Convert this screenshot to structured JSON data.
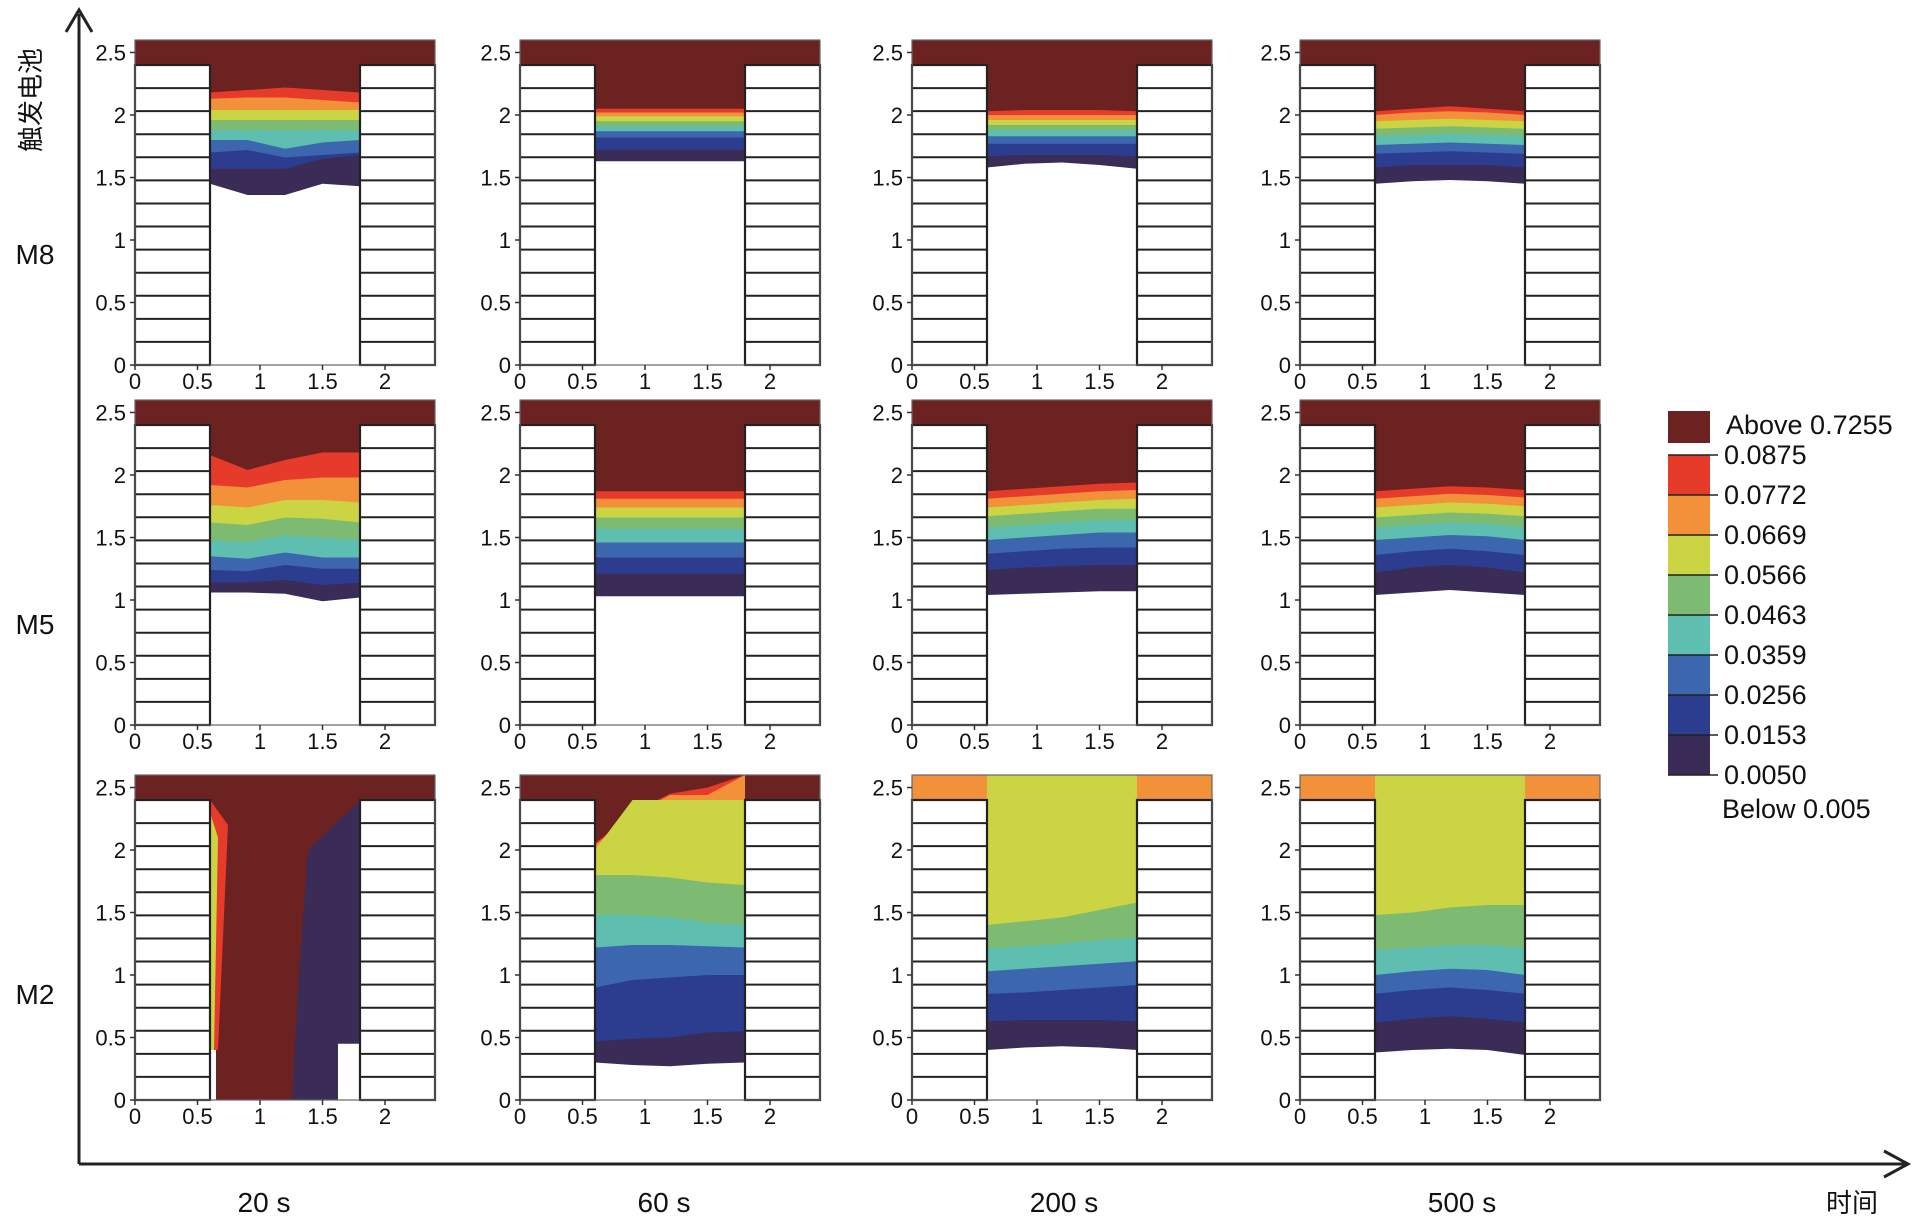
{
  "figure": {
    "y_axis_title": "触发电池",
    "x_axis_title": "时间"
  },
  "colors": {
    "above": "#6b2220",
    "bands": [
      "#3a2b57",
      "#2c3c8e",
      "#3c66ad",
      "#5ebfb1",
      "#7dba72",
      "#cbd544",
      "#f3903a",
      "#e63b2b"
    ],
    "brick_line": "#222222",
    "brick_fill": "#ffffff"
  },
  "legend": {
    "above_label": "Above 0.7255",
    "below_label": "Below 0.005",
    "levels": [
      "0.0875",
      "0.0772",
      "0.0669",
      "0.0566",
      "0.0463",
      "0.0359",
      "0.0256",
      "0.0153",
      "0.0050"
    ]
  },
  "chart_data": {
    "type": "heatmap",
    "rows": [
      "M8",
      "M5",
      "M2"
    ],
    "columns": [
      "20 s",
      "60 s",
      "200 s",
      "500 s"
    ],
    "x_ticks": [
      "0",
      "0.5",
      "1",
      "1.5",
      "2"
    ],
    "y_ticks": [
      "0",
      "0.5",
      "1",
      "1.5",
      "2",
      "2.5"
    ],
    "xlim": [
      0,
      2.4
    ],
    "ylim": [
      0,
      2.6
    ],
    "channel_x_range": [
      0.6,
      1.8
    ],
    "header_y_range": [
      2.4,
      2.6
    ],
    "panels": [
      {
        "row": "M8",
        "time": "20 s",
        "top_band": 7,
        "x": [
          0.6,
          0.9,
          1.2,
          1.5,
          1.8
        ],
        "contours": [
          [
            1.45,
            1.36,
            1.36,
            1.45,
            1.43
          ],
          [
            1.57,
            1.57,
            1.57,
            1.65,
            1.68
          ],
          [
            1.7,
            1.72,
            1.66,
            1.68,
            1.7
          ],
          [
            1.8,
            1.8,
            1.73,
            1.78,
            1.8
          ],
          [
            1.88,
            1.88,
            1.88,
            1.88,
            1.88
          ],
          [
            1.96,
            1.96,
            1.96,
            1.96,
            1.96
          ],
          [
            2.04,
            2.04,
            2.04,
            2.04,
            2.04
          ],
          [
            2.13,
            2.14,
            2.14,
            2.12,
            2.1
          ],
          [
            2.18,
            2.2,
            2.22,
            2.2,
            2.18
          ]
        ]
      },
      {
        "row": "M8",
        "time": "60 s",
        "top_band": 7,
        "x": [
          0.6,
          0.9,
          1.2,
          1.5,
          1.8
        ],
        "contours": [
          [
            1.63,
            1.63,
            1.63,
            1.63,
            1.63
          ],
          [
            1.72,
            1.72,
            1.72,
            1.72,
            1.72
          ],
          [
            1.82,
            1.82,
            1.82,
            1.82,
            1.82
          ],
          [
            1.87,
            1.87,
            1.87,
            1.87,
            1.87
          ],
          [
            1.91,
            1.91,
            1.91,
            1.91,
            1.91
          ],
          [
            1.95,
            1.95,
            1.95,
            1.95,
            1.95
          ],
          [
            1.99,
            1.99,
            1.99,
            1.99,
            1.99
          ],
          [
            2.02,
            2.02,
            2.02,
            2.02,
            2.02
          ],
          [
            2.05,
            2.05,
            2.05,
            2.05,
            2.05
          ]
        ]
      },
      {
        "row": "M8",
        "time": "200 s",
        "top_band": 7,
        "x": [
          0.6,
          0.9,
          1.2,
          1.5,
          1.8
        ],
        "contours": [
          [
            1.58,
            1.61,
            1.62,
            1.6,
            1.57
          ],
          [
            1.67,
            1.68,
            1.68,
            1.68,
            1.67
          ],
          [
            1.77,
            1.77,
            1.77,
            1.77,
            1.77
          ],
          [
            1.83,
            1.83,
            1.83,
            1.83,
            1.83
          ],
          [
            1.88,
            1.88,
            1.88,
            1.88,
            1.88
          ],
          [
            1.92,
            1.92,
            1.92,
            1.92,
            1.92
          ],
          [
            1.96,
            1.96,
            1.96,
            1.96,
            1.96
          ],
          [
            2.0,
            2.0,
            2.0,
            2.0,
            2.0
          ],
          [
            2.03,
            2.04,
            2.04,
            2.04,
            2.03
          ]
        ]
      },
      {
        "row": "M8",
        "time": "500 s",
        "top_band": 7,
        "x": [
          0.6,
          0.9,
          1.2,
          1.5,
          1.8
        ],
        "contours": [
          [
            1.45,
            1.47,
            1.48,
            1.47,
            1.45
          ],
          [
            1.58,
            1.6,
            1.6,
            1.6,
            1.58
          ],
          [
            1.69,
            1.7,
            1.71,
            1.7,
            1.69
          ],
          [
            1.76,
            1.77,
            1.78,
            1.77,
            1.76
          ],
          [
            1.83,
            1.84,
            1.85,
            1.84,
            1.83
          ],
          [
            1.89,
            1.9,
            1.91,
            1.9,
            1.89
          ],
          [
            1.95,
            1.96,
            1.97,
            1.96,
            1.95
          ],
          [
            2.0,
            2.02,
            2.03,
            2.02,
            2.0
          ],
          [
            2.03,
            2.05,
            2.07,
            2.05,
            2.03
          ]
        ]
      },
      {
        "row": "M5",
        "time": "20 s",
        "top_band": 7,
        "x": [
          0.6,
          0.9,
          1.2,
          1.5,
          1.8
        ],
        "contours": [
          [
            1.06,
            1.06,
            1.05,
            0.99,
            1.02
          ],
          [
            1.14,
            1.14,
            1.16,
            1.12,
            1.14
          ],
          [
            1.24,
            1.23,
            1.28,
            1.25,
            1.25
          ],
          [
            1.35,
            1.33,
            1.38,
            1.34,
            1.34
          ],
          [
            1.48,
            1.46,
            1.52,
            1.5,
            1.48
          ],
          [
            1.62,
            1.6,
            1.66,
            1.65,
            1.62
          ],
          [
            1.76,
            1.74,
            1.8,
            1.8,
            1.78
          ],
          [
            1.92,
            1.9,
            1.96,
            1.98,
            1.98
          ],
          [
            2.16,
            2.04,
            2.12,
            2.18,
            2.18
          ]
        ]
      },
      {
        "row": "M5",
        "time": "60 s",
        "top_band": 7,
        "x": [
          0.6,
          0.9,
          1.2,
          1.5,
          1.8
        ],
        "contours": [
          [
            1.03,
            1.03,
            1.03,
            1.03,
            1.03
          ],
          [
            1.21,
            1.21,
            1.21,
            1.21,
            1.21
          ],
          [
            1.34,
            1.34,
            1.34,
            1.34,
            1.34
          ],
          [
            1.46,
            1.46,
            1.46,
            1.46,
            1.46
          ],
          [
            1.57,
            1.57,
            1.57,
            1.57,
            1.57
          ],
          [
            1.66,
            1.66,
            1.66,
            1.66,
            1.66
          ],
          [
            1.74,
            1.74,
            1.74,
            1.74,
            1.74
          ],
          [
            1.81,
            1.81,
            1.81,
            1.81,
            1.81
          ],
          [
            1.87,
            1.87,
            1.87,
            1.87,
            1.87
          ]
        ]
      },
      {
        "row": "M5",
        "time": "200 s",
        "top_band": 7,
        "x": [
          0.6,
          0.9,
          1.2,
          1.5,
          1.8
        ],
        "contours": [
          [
            1.04,
            1.05,
            1.06,
            1.07,
            1.07
          ],
          [
            1.24,
            1.26,
            1.27,
            1.28,
            1.28
          ],
          [
            1.37,
            1.39,
            1.41,
            1.42,
            1.42
          ],
          [
            1.48,
            1.5,
            1.52,
            1.54,
            1.54
          ],
          [
            1.58,
            1.6,
            1.62,
            1.64,
            1.64
          ],
          [
            1.67,
            1.69,
            1.71,
            1.73,
            1.73
          ],
          [
            1.74,
            1.76,
            1.78,
            1.8,
            1.81
          ],
          [
            1.81,
            1.83,
            1.85,
            1.87,
            1.88
          ],
          [
            1.87,
            1.89,
            1.91,
            1.93,
            1.94
          ]
        ]
      },
      {
        "row": "M5",
        "time": "500 s",
        "top_band": 7,
        "x": [
          0.6,
          0.9,
          1.2,
          1.5,
          1.8
        ],
        "contours": [
          [
            1.04,
            1.06,
            1.08,
            1.06,
            1.04
          ],
          [
            1.22,
            1.26,
            1.28,
            1.26,
            1.22
          ],
          [
            1.36,
            1.39,
            1.41,
            1.39,
            1.36
          ],
          [
            1.48,
            1.5,
            1.52,
            1.51,
            1.48
          ],
          [
            1.58,
            1.6,
            1.62,
            1.61,
            1.58
          ],
          [
            1.66,
            1.68,
            1.7,
            1.69,
            1.67
          ],
          [
            1.74,
            1.76,
            1.78,
            1.77,
            1.75
          ],
          [
            1.81,
            1.83,
            1.85,
            1.84,
            1.82
          ],
          [
            1.87,
            1.89,
            1.91,
            1.9,
            1.88
          ]
        ]
      },
      {
        "row": "M2",
        "time": "20 s",
        "top_band": 8,
        "x": [
          0.6,
          1.2,
          1.8
        ],
        "contours": [],
        "notes": "channel mostly above 0.7255; colored bands hug both brick walls"
      },
      {
        "row": "M2",
        "time": "60 s",
        "top_band": 7,
        "x": [
          0.6,
          0.9,
          1.2,
          1.5,
          1.8
        ],
        "contours": [
          [
            0.3,
            0.28,
            0.27,
            0.29,
            0.3
          ],
          [
            0.47,
            0.49,
            0.5,
            0.54,
            0.55
          ],
          [
            0.9,
            0.96,
            0.98,
            1.0,
            1.0
          ],
          [
            1.22,
            1.24,
            1.24,
            1.23,
            1.22
          ],
          [
            1.48,
            1.48,
            1.46,
            1.42,
            1.4
          ],
          [
            1.8,
            1.8,
            1.78,
            1.74,
            1.72
          ],
          [
            2.0,
            2.4,
            2.4,
            2.4,
            2.4
          ],
          [
            2.04,
            2.28,
            2.44,
            2.44,
            2.6
          ],
          [
            2.05,
            2.3,
            2.45,
            2.5,
            2.6
          ]
        ]
      },
      {
        "row": "M2",
        "time": "200 s",
        "top_band": 6,
        "x": [
          0.6,
          0.9,
          1.2,
          1.5,
          1.8
        ],
        "contours": [
          [
            0.4,
            0.42,
            0.43,
            0.42,
            0.4
          ],
          [
            0.63,
            0.64,
            0.64,
            0.64,
            0.63
          ],
          [
            0.85,
            0.86,
            0.88,
            0.9,
            0.92
          ],
          [
            1.03,
            1.05,
            1.07,
            1.09,
            1.11
          ],
          [
            1.21,
            1.23,
            1.25,
            1.28,
            1.3
          ],
          [
            1.4,
            1.43,
            1.46,
            1.52,
            1.58
          ],
          [
            2.6,
            2.6,
            2.6,
            2.6,
            2.6
          ],
          [
            2.6,
            2.6,
            2.6,
            2.6,
            2.6
          ],
          [
            2.6,
            2.6,
            2.6,
            2.6,
            2.6
          ]
        ]
      },
      {
        "row": "M2",
        "time": "500 s",
        "top_band": 6,
        "x": [
          0.6,
          0.9,
          1.2,
          1.5,
          1.8
        ],
        "contours": [
          [
            0.38,
            0.4,
            0.41,
            0.4,
            0.36
          ],
          [
            0.62,
            0.65,
            0.67,
            0.65,
            0.62
          ],
          [
            0.85,
            0.88,
            0.9,
            0.88,
            0.85
          ],
          [
            1.0,
            1.03,
            1.05,
            1.04,
            1.0
          ],
          [
            1.2,
            1.22,
            1.24,
            1.24,
            1.22
          ],
          [
            1.48,
            1.5,
            1.54,
            1.56,
            1.56
          ],
          [
            2.6,
            2.6,
            2.6,
            2.6,
            2.6
          ],
          [
            2.6,
            2.6,
            2.6,
            2.6,
            2.6
          ],
          [
            2.6,
            2.6,
            2.6,
            2.6,
            2.6
          ]
        ]
      }
    ]
  }
}
